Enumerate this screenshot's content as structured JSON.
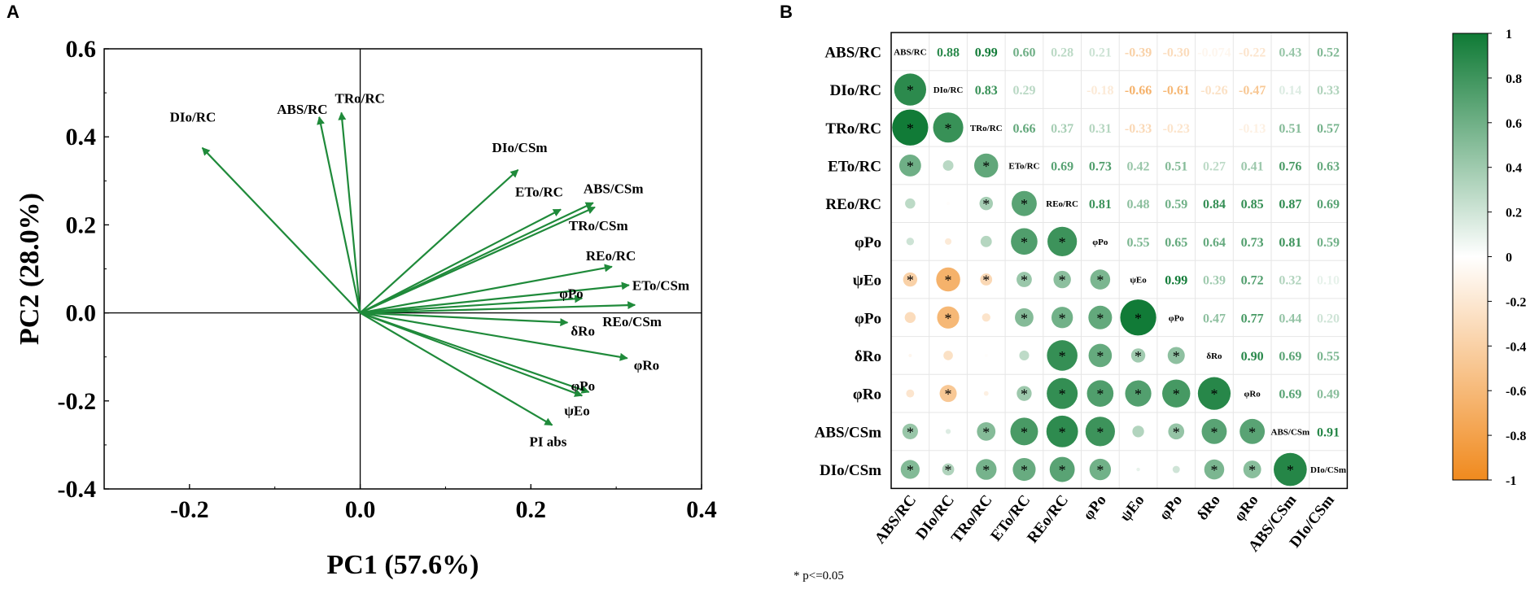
{
  "panels": {
    "a": "A",
    "b": "B"
  },
  "colors": {
    "arrow": "#1f8a3a",
    "positive_dark": "#0f7a35",
    "negative_dark": "#f08a1e",
    "neutral": "#ffffff"
  },
  "chart_data": [
    {
      "type": "scatter",
      "subtype": "biplot-vectors",
      "title": "",
      "xlabel": "PC1 (57.6%)",
      "ylabel": "PC2 (28.0%)",
      "xlim": [
        -0.3,
        0.4
      ],
      "ylim": [
        -0.4,
        0.6
      ],
      "xticks": [
        -0.2,
        0.0,
        0.2,
        0.4
      ],
      "yticks": [
        -0.4,
        -0.2,
        0.0,
        0.2,
        0.4,
        0.6
      ],
      "xtick_labels": [
        "-0.2",
        "0.0",
        "0.2",
        "0.4"
      ],
      "ytick_labels": [
        "-0.4",
        "-0.2",
        "0.0",
        "0.2",
        "0.4",
        "0.6"
      ],
      "vectors": [
        {
          "name": "DIo/RC",
          "x": -0.185,
          "y": 0.375
        },
        {
          "name": "ABS/RC",
          "x": -0.048,
          "y": 0.445
        },
        {
          "name": "TRo/RC",
          "x": -0.022,
          "y": 0.455
        },
        {
          "name": "DIo/CSm",
          "x": 0.185,
          "y": 0.325
        },
        {
          "name": "ETo/RC",
          "x": 0.235,
          "y": 0.235
        },
        {
          "name": "ABS/CSm",
          "x": 0.273,
          "y": 0.25
        },
        {
          "name": "TRo/CSm",
          "x": 0.275,
          "y": 0.24
        },
        {
          "name": "REo/RC",
          "x": 0.295,
          "y": 0.105
        },
        {
          "name": "ETo/CSm",
          "x": 0.315,
          "y": 0.063
        },
        {
          "name": "φPo",
          "x": 0.26,
          "y": 0.033
        },
        {
          "name": "REo/CSm",
          "x": 0.322,
          "y": 0.018
        },
        {
          "name": "δRo",
          "x": 0.243,
          "y": -0.022
        },
        {
          "name": "φRo",
          "x": 0.313,
          "y": -0.103
        },
        {
          "name": "φPo",
          "x": 0.268,
          "y": -0.18
        },
        {
          "name": "ψEo",
          "x": 0.26,
          "y": -0.188
        },
        {
          "name": "PI abs",
          "x": 0.225,
          "y": -0.255
        }
      ]
    },
    {
      "type": "heatmap",
      "subtype": "correlation-matrix",
      "variables": [
        "ABS/RC",
        "DIo/RC",
        "TRo/RC",
        "ETo/RC",
        "REo/RC",
        "φPo",
        "ψEo",
        "φPo",
        "δRo",
        "φRo",
        "ABS/CSm",
        "DIo/CSm"
      ],
      "matrix": [
        [
          1,
          0.88,
          0.99,
          0.6,
          0.28,
          0.21,
          -0.39,
          -0.3,
          -0.074,
          -0.22,
          0.43,
          0.52
        ],
        [
          0.88,
          1,
          0.83,
          0.29,
          -0.02,
          -0.18,
          -0.66,
          -0.61,
          -0.26,
          -0.47,
          0.14,
          0.33
        ],
        [
          0.99,
          0.83,
          1,
          0.66,
          0.37,
          0.31,
          -0.33,
          -0.23,
          -0.02,
          -0.13,
          0.51,
          0.57
        ],
        [
          0.6,
          0.29,
          0.66,
          1,
          0.69,
          0.73,
          0.42,
          0.51,
          0.27,
          0.41,
          0.76,
          0.63
        ],
        [
          0.28,
          -0.02,
          0.37,
          0.69,
          1,
          0.81,
          0.48,
          0.59,
          0.84,
          0.85,
          0.87,
          0.69
        ],
        [
          0.21,
          -0.18,
          0.31,
          0.73,
          0.81,
          1,
          0.55,
          0.65,
          0.64,
          0.73,
          0.81,
          0.59
        ],
        [
          -0.39,
          -0.66,
          -0.33,
          0.42,
          0.48,
          0.55,
          1,
          0.99,
          0.39,
          0.72,
          0.32,
          0.1
        ],
        [
          -0.3,
          -0.61,
          -0.23,
          0.51,
          0.59,
          0.65,
          0.99,
          1,
          0.47,
          0.77,
          0.44,
          0.2
        ],
        [
          -0.074,
          -0.26,
          -0.02,
          0.27,
          0.84,
          0.64,
          0.39,
          0.47,
          1,
          0.9,
          0.69,
          0.55
        ],
        [
          -0.22,
          -0.47,
          -0.13,
          0.41,
          0.85,
          0.73,
          0.72,
          0.77,
          0.9,
          1,
          0.69,
          0.49
        ],
        [
          0.43,
          0.14,
          0.51,
          0.76,
          0.87,
          0.81,
          0.32,
          0.44,
          0.69,
          0.69,
          1,
          0.91
        ],
        [
          0.52,
          0.33,
          0.57,
          0.63,
          0.69,
          0.59,
          0.1,
          0.2,
          0.55,
          0.49,
          0.91,
          1
        ]
      ],
      "upper_labels": [
        [
          "",
          "0.88",
          "0.99",
          "0.60",
          "0.28",
          "0.21",
          "-0.39",
          "-0.30",
          "-0.074",
          "-0.22",
          "0.43",
          "0.52"
        ],
        [
          "",
          "",
          "0.83",
          "0.29",
          "",
          "-0.18",
          "-0.66",
          "-0.61",
          "-0.26",
          "-0.47",
          "0.14",
          "0.33"
        ],
        [
          "",
          "",
          "",
          "0.66",
          "0.37",
          "0.31",
          "-0.33",
          "-0.23",
          "",
          "-0.13",
          "0.51",
          "0.57"
        ],
        [
          "",
          "",
          "",
          "",
          "0.69",
          "0.73",
          "0.42",
          "0.51",
          "0.27",
          "0.41",
          "0.76",
          "0.63"
        ],
        [
          "",
          "",
          "",
          "",
          "",
          "0.81",
          "0.48",
          "0.59",
          "0.84",
          "0.85",
          "0.87",
          "0.69"
        ],
        [
          "",
          "",
          "",
          "",
          "",
          "",
          "0.55",
          "0.65",
          "0.64",
          "0.73",
          "0.81",
          "0.59"
        ],
        [
          "",
          "",
          "",
          "",
          "",
          "",
          "",
          "0.99",
          "0.39",
          "0.72",
          "0.32",
          "0.10"
        ],
        [
          "",
          "",
          "",
          "",
          "",
          "",
          "",
          "",
          "0.47",
          "0.77",
          "0.44",
          "0.20"
        ],
        [
          "",
          "",
          "",
          "",
          "",
          "",
          "",
          "",
          "",
          "0.90",
          "0.69",
          "0.55"
        ],
        [
          "",
          "",
          "",
          "",
          "",
          "",
          "",
          "",
          "",
          "",
          "0.69",
          "0.49"
        ],
        [
          "",
          "",
          "",
          "",
          "",
          "",
          "",
          "",
          "",
          "",
          "",
          "0.91"
        ],
        [
          "",
          "",
          "",
          "",
          "",
          "",
          "",
          "",
          "",
          "",
          "",
          ""
        ]
      ],
      "significant_lower": [
        [
          false,
          false,
          false,
          false,
          false,
          false,
          false,
          false,
          false,
          false,
          false,
          false
        ],
        [
          true,
          false,
          false,
          false,
          false,
          false,
          false,
          false,
          false,
          false,
          false,
          false
        ],
        [
          true,
          true,
          false,
          false,
          false,
          false,
          false,
          false,
          false,
          false,
          false,
          false
        ],
        [
          true,
          false,
          true,
          false,
          false,
          false,
          false,
          false,
          false,
          false,
          false,
          false
        ],
        [
          false,
          false,
          true,
          true,
          false,
          false,
          false,
          false,
          false,
          false,
          false,
          false
        ],
        [
          false,
          false,
          false,
          true,
          true,
          false,
          false,
          false,
          false,
          false,
          false,
          false
        ],
        [
          true,
          true,
          true,
          true,
          true,
          true,
          false,
          false,
          false,
          false,
          false,
          false
        ],
        [
          false,
          true,
          false,
          true,
          true,
          true,
          true,
          false,
          false,
          false,
          false,
          false
        ],
        [
          false,
          false,
          false,
          false,
          true,
          true,
          true,
          true,
          false,
          false,
          false,
          false
        ],
        [
          false,
          true,
          false,
          true,
          true,
          true,
          true,
          true,
          true,
          false,
          false,
          false
        ],
        [
          true,
          false,
          true,
          true,
          true,
          true,
          false,
          true,
          true,
          true,
          false,
          false
        ],
        [
          true,
          true,
          true,
          true,
          true,
          true,
          false,
          false,
          true,
          true,
          true,
          false
        ]
      ],
      "colorbar": {
        "range": [
          -1,
          1
        ],
        "ticks": [
          "1",
          "0.8",
          "0.6",
          "0.4",
          "0.2",
          "0",
          "-0.2",
          "-0.4",
          "-0.6",
          "-0.8",
          "-1"
        ]
      },
      "footnote": "* p<=0.05",
      "significance_marker": "*"
    }
  ]
}
